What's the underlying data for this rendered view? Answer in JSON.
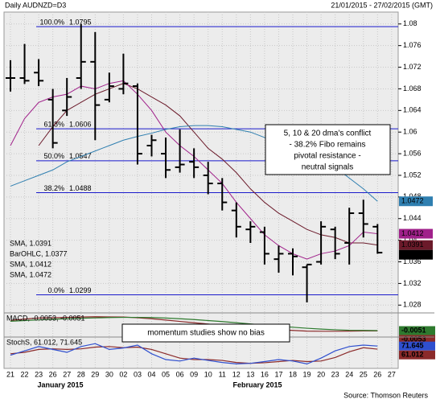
{
  "header": {
    "title": "Daily AUDNZD=D3",
    "range": "21/01/2015 - 27/02/2015 (GMT)"
  },
  "source": "Source: Thomson Reuters",
  "momentum_note": "momentum studies show no bias",
  "chart_data": [
    {
      "type": "ohlc",
      "categories": [
        "21",
        "22",
        "23",
        "26",
        "27",
        "28",
        "29",
        "30",
        "02",
        "03",
        "04",
        "05",
        "06",
        "09",
        "10",
        "11",
        "12",
        "13",
        "16",
        "17",
        "18",
        "19",
        "20",
        "23",
        "24",
        "25",
        "26",
        "27"
      ],
      "months": [
        "January 2015",
        "February 2015"
      ],
      "open": [
        1.07,
        1.07,
        1.071,
        1.066,
        1.064,
        1.07,
        1.073,
        1.066,
        1.068,
        1.0685,
        1.0575,
        1.056,
        1.0535,
        1.0545,
        1.052,
        1.0505,
        1.0455,
        1.042,
        1.0415,
        1.0365,
        1.0375,
        1.035,
        1.036,
        1.042,
        1.0395,
        1.045,
        1.0425,
        null
      ],
      "high": [
        1.0733,
        1.0763,
        1.0735,
        1.068,
        1.07,
        1.08,
        1.0785,
        1.071,
        1.0745,
        1.069,
        1.0595,
        1.059,
        1.0605,
        1.057,
        1.0545,
        1.0515,
        1.047,
        1.0435,
        1.0425,
        1.039,
        1.0385,
        1.0355,
        1.0435,
        1.0425,
        1.046,
        1.0475,
        1.043,
        null
      ],
      "low": [
        1.0675,
        1.0689,
        1.0685,
        1.057,
        1.063,
        1.068,
        1.0585,
        1.0655,
        1.067,
        1.054,
        1.0555,
        1.0515,
        1.0525,
        1.0515,
        1.0485,
        1.0455,
        1.0405,
        1.0395,
        1.0355,
        1.034,
        1.0335,
        1.0285,
        1.0355,
        1.0365,
        1.0355,
        1.0405,
        1.0375,
        null
      ],
      "close": [
        1.07,
        1.0695,
        1.0695,
        1.058,
        1.0665,
        1.073,
        1.065,
        1.0685,
        1.069,
        1.056,
        1.0585,
        1.053,
        1.054,
        1.0535,
        1.0505,
        1.047,
        1.0425,
        1.0425,
        1.0375,
        1.0375,
        1.037,
        1.0355,
        1.0425,
        1.0375,
        1.045,
        1.043,
        1.0377,
        null
      ],
      "bar_color": "#000000",
      "ylim": [
        1.027,
        1.0822
      ],
      "yticks": [
        1.028,
        1.032,
        1.036,
        1.04,
        1.044,
        1.048,
        1.052,
        1.056,
        1.06,
        1.064,
        1.068,
        1.072,
        1.076,
        1.08
      ],
      "grid": true,
      "legend": [
        {
          "label": "SMA, 1.0391",
          "color": "#6b1a2a"
        },
        {
          "label": "BarOHLC, 1.0377",
          "color": "#000000"
        },
        {
          "label": "SMA, 1.0412",
          "color": "#a0208a"
        },
        {
          "label": "SMA, 1.0472",
          "color": "#2f7fb0"
        }
      ],
      "series": [
        {
          "color": "#6b1a2a",
          "values": [
            null,
            null,
            1.0575,
            1.061,
            1.064,
            1.0655,
            1.067,
            1.068,
            1.069,
            1.068,
            1.0665,
            1.065,
            1.063,
            1.06,
            1.057,
            1.055,
            1.0525,
            1.0495,
            1.047,
            1.045,
            1.0435,
            1.042,
            1.041,
            1.0405,
            1.0395,
            1.0395,
            1.0391,
            null
          ]
        },
        {
          "color": "#a0208a",
          "values": [
            1.0575,
            1.0625,
            1.0655,
            1.0665,
            1.067,
            1.0685,
            1.068,
            1.069,
            1.0695,
            1.067,
            1.064,
            1.06,
            1.0575,
            1.0555,
            1.053,
            1.0505,
            1.047,
            1.044,
            1.041,
            1.039,
            1.0375,
            1.0365,
            1.0375,
            1.038,
            1.039,
            1.0415,
            1.0412,
            null
          ]
        },
        {
          "color": "#2f7fb0",
          "values": [
            1.05,
            1.051,
            1.052,
            1.053,
            1.0545,
            1.0555,
            1.0565,
            1.0575,
            1.0585,
            1.0592,
            1.0598,
            1.0605,
            1.061,
            1.0612,
            1.0612,
            1.061,
            1.0605,
            1.06,
            1.059,
            1.058,
            1.057,
            1.056,
            1.0548,
            1.0535,
            1.0515,
            1.0495,
            1.0472,
            null
          ]
        }
      ],
      "fibonacci": [
        {
          "label": "100.0%",
          "value": 1.0795
        },
        {
          "label": "61.8%",
          "value": 1.0606
        },
        {
          "label": "50.0%",
          "value": 1.0547
        },
        {
          "label": "38.2%",
          "value": 1.0488
        },
        {
          "label": "0.0%",
          "value": 1.0299
        }
      ],
      "fib_color": "#1a1acc",
      "annotation": [
        "5, 10 & 20 dma's conflict",
        "- 38.2% Fibo remains",
        "pivotal resistance -",
        "neutral signals"
      ]
    },
    {
      "type": "line",
      "label": "MACD, -0.0053, -0.0051",
      "ylim": [
        -0.008,
        0.005
      ],
      "series": [
        {
          "color": "#8b2a2a",
          "values": [
            0.001,
            0.0018,
            0.0024,
            0.0026,
            0.0028,
            0.003,
            0.0032,
            0.0031,
            0.003,
            0.0026,
            0.002,
            0.0012,
            0.0004,
            -0.0004,
            -0.0012,
            -0.002,
            -0.0028,
            -0.0035,
            -0.0041,
            -0.0046,
            -0.005,
            -0.0054,
            -0.0055,
            -0.0055,
            -0.0054,
            -0.0053,
            -0.0053,
            null
          ]
        },
        {
          "color": "#2e7a2e",
          "values": [
            0.0005,
            0.0009,
            0.0013,
            0.0017,
            0.002,
            0.0023,
            0.0025,
            0.0027,
            0.0028,
            0.0028,
            0.0027,
            0.0024,
            0.002,
            0.0015,
            0.0009,
            0.0003,
            -0.0004,
            -0.0011,
            -0.0018,
            -0.0025,
            -0.0031,
            -0.0037,
            -0.0042,
            -0.0046,
            -0.0049,
            -0.005,
            -0.0051,
            null
          ]
        }
      ]
    },
    {
      "type": "line",
      "label": "StochS, 61.012, 71.645",
      "ylim": [
        0,
        100
      ],
      "series": [
        {
          "color": "#8b2a2a",
          "values": [
            45,
            50,
            60,
            62,
            60,
            62,
            68,
            70,
            66,
            68,
            60,
            45,
            30,
            25,
            25,
            22,
            15,
            12,
            14,
            18,
            22,
            18,
            20,
            32,
            52,
            66,
            61.012,
            null
          ]
        },
        {
          "color": "#2f4fcf",
          "values": [
            40,
            55,
            70,
            60,
            50,
            70,
            80,
            60,
            65,
            75,
            45,
            25,
            20,
            30,
            22,
            15,
            10,
            12,
            18,
            25,
            20,
            10,
            30,
            55,
            70,
            75,
            71.645,
            null
          ]
        }
      ]
    }
  ]
}
